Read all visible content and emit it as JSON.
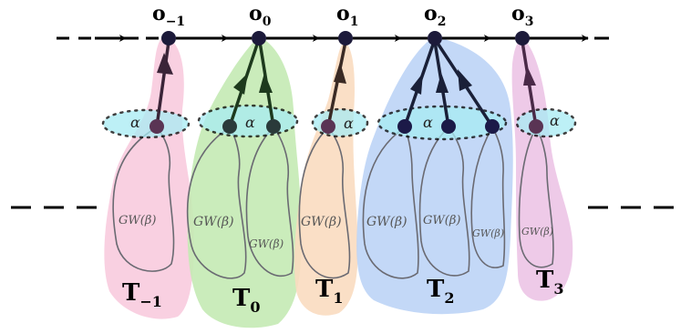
{
  "observations": [
    {
      "id": "o-1",
      "base": "o",
      "sub": "−1"
    },
    {
      "id": "o0",
      "base": "o",
      "sub": "0"
    },
    {
      "id": "o1",
      "base": "o",
      "sub": "1"
    },
    {
      "id": "o2",
      "base": "o",
      "sub": "2"
    },
    {
      "id": "o3",
      "base": "o",
      "sub": "3"
    }
  ],
  "trees": [
    {
      "id": "T-1",
      "base": "T",
      "sub": "−1",
      "color": "#f8c8dc"
    },
    {
      "id": "T0",
      "base": "T",
      "sub": "0",
      "color": "#c4eab4"
    },
    {
      "id": "T1",
      "base": "T",
      "sub": "1",
      "color": "#fadcc0"
    },
    {
      "id": "T2",
      "base": "T",
      "sub": "2",
      "color": "#bcd4f6"
    },
    {
      "id": "T3",
      "base": "T",
      "sub": "3",
      "color": "#ecc4e6"
    }
  ],
  "alpha_label": "α",
  "gw_label": "GW(β)",
  "colors": {
    "node": "#1c1a3a",
    "alpha_fill": "#a8ecf4",
    "chain": "#000000",
    "loop_stroke": "#6a6a72"
  }
}
